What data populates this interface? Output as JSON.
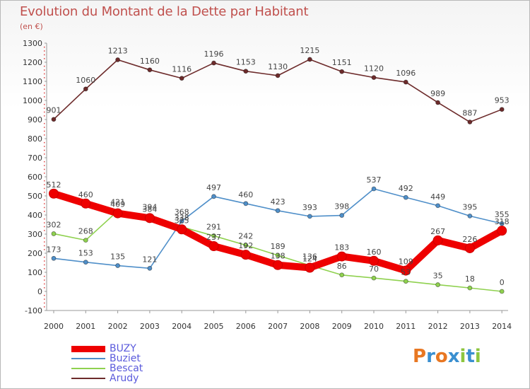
{
  "header": {
    "title": "Evolution du Montant de la Dette par Habitant",
    "subtitle": "(en €)"
  },
  "logo": {
    "text": "Proxiti",
    "letter_colors": [
      "#e87722",
      "#3a8fd0",
      "#e87722",
      "#3a8fd0",
      "#8dc63f",
      "#3a8fd0",
      "#8dc63f"
    ]
  },
  "chart_data": {
    "type": "line",
    "title": "Evolution du Montant de la Dette par Habitant",
    "ylabel": "(en €)",
    "xlabel": "",
    "x": [
      "2000",
      "2001",
      "2002",
      "2003",
      "2004",
      "2005",
      "2006",
      "2007",
      "2008",
      "2009",
      "2010",
      "2011",
      "2012",
      "2013",
      "2014"
    ],
    "ylim": [
      -100,
      1300
    ],
    "yticks": [
      -100,
      0,
      100,
      200,
      300,
      400,
      500,
      600,
      700,
      800,
      900,
      1000,
      1100,
      1200,
      1300
    ],
    "grid": false,
    "legend_position": "bottom-left",
    "series": [
      {
        "name": "BUZY",
        "color": "#ee0000",
        "values": [
          512,
          460,
          409,
          384,
          325,
          237,
          192,
          138,
          124,
          183,
          160,
          109,
          267,
          226,
          318
        ],
        "emphasis": true
      },
      {
        "name": "Buziet",
        "color": "#4f8fc9",
        "values": [
          173,
          153,
          135,
          121,
          368,
          497,
          460,
          423,
          393,
          398,
          537,
          492,
          449,
          395,
          355
        ]
      },
      {
        "name": "Bescat",
        "color": "#8fd14f",
        "values": [
          302,
          268,
          421,
          394,
          338,
          291,
          242,
          189,
          136,
          86,
          70,
          53,
          35,
          18,
          0
        ]
      },
      {
        "name": "Arudy",
        "color": "#6d2b2b",
        "values": [
          901,
          1060,
          1213,
          1160,
          1116,
          1196,
          1153,
          1130,
          1215,
          1151,
          1120,
          1096,
          989,
          887,
          953
        ]
      }
    ]
  }
}
